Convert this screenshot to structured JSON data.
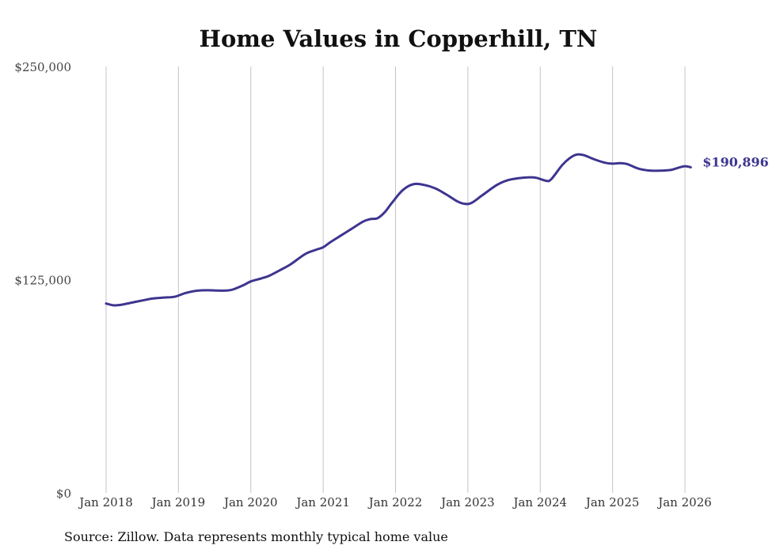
{
  "chart_data": {
    "type": "line",
    "title": "Home Values in Copperhill, TN",
    "xlabel": "",
    "ylabel": "",
    "ylim": [
      0,
      250000
    ],
    "y_ticks": [
      {
        "value": 0,
        "label": "$0"
      },
      {
        "value": 125000,
        "label": "$125,000"
      },
      {
        "value": 250000,
        "label": "$250,000"
      }
    ],
    "x_ticks": [
      {
        "value": 2018,
        "label": "Jan 2018"
      },
      {
        "value": 2019,
        "label": "Jan 2019"
      },
      {
        "value": 2020,
        "label": "Jan 2020"
      },
      {
        "value": 2021,
        "label": "Jan 2021"
      },
      {
        "value": 2022,
        "label": "Jan 2022"
      },
      {
        "value": 2023,
        "label": "Jan 2023"
      },
      {
        "value": 2024,
        "label": "Jan 2024"
      },
      {
        "value": 2025,
        "label": "Jan 2025"
      },
      {
        "value": 2026,
        "label": "Jan 2026"
      }
    ],
    "xlim": [
      2018,
      2026.08
    ],
    "grid": "vertical",
    "series": [
      {
        "name": "Typical home value",
        "color": "#3d358f",
        "end_label": "$190,896",
        "x": [
          2018.0,
          2018.1,
          2018.2,
          2018.35,
          2018.5,
          2018.65,
          2018.8,
          2018.95,
          2019.1,
          2019.25,
          2019.4,
          2019.55,
          2019.65,
          2019.75,
          2019.9,
          2020.0,
          2020.15,
          2020.25,
          2020.4,
          2020.55,
          2020.75,
          2020.9,
          2021.0,
          2021.1,
          2021.25,
          2021.4,
          2021.55,
          2021.65,
          2021.75,
          2021.85,
          2021.95,
          2022.1,
          2022.25,
          2022.4,
          2022.55,
          2022.7,
          2022.85,
          2022.95,
          2023.05,
          2023.2,
          2023.4,
          2023.55,
          2023.7,
          2023.85,
          2023.95,
          2024.08,
          2024.15,
          2024.3,
          2024.4,
          2024.5,
          2024.6,
          2024.75,
          2024.9,
          2025.0,
          2025.1,
          2025.2,
          2025.35,
          2025.5,
          2025.65,
          2025.8,
          2025.9,
          2026.0,
          2026.08
        ],
        "values": [
          111000,
          110000,
          110200,
          111500,
          112800,
          114000,
          114500,
          115000,
          117200,
          118500,
          118800,
          118600,
          118600,
          119200,
          121800,
          124000,
          125800,
          127200,
          130500,
          134000,
          140000,
          142500,
          144000,
          147000,
          151000,
          155000,
          159000,
          160500,
          161000,
          164500,
          170000,
          177500,
          181000,
          180500,
          178500,
          175000,
          171000,
          169500,
          170000,
          174500,
          180500,
          183300,
          184500,
          185000,
          184700,
          183000,
          183800,
          192000,
          196000,
          198300,
          198000,
          195500,
          193500,
          193000,
          193300,
          192800,
          190200,
          189000,
          188900,
          189300,
          190500,
          191500,
          190896
        ]
      }
    ],
    "source": "Source: Zillow. Data represents monthly typical home value"
  }
}
